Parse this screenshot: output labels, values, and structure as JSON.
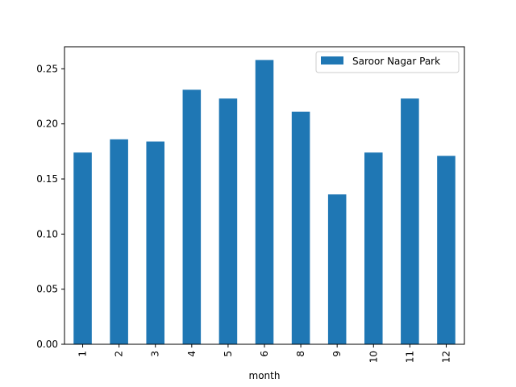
{
  "chart_data": {
    "type": "bar",
    "title": "",
    "xlabel": "month",
    "ylabel": "",
    "categories": [
      "1",
      "2",
      "3",
      "4",
      "5",
      "6",
      "8",
      "9",
      "10",
      "11",
      "12"
    ],
    "series": [
      {
        "name": "Saroor Nagar Park",
        "color": "#1f77b4",
        "values": [
          0.174,
          0.186,
          0.184,
          0.231,
          0.223,
          0.258,
          0.211,
          0.136,
          0.174,
          0.223,
          0.171
        ]
      }
    ],
    "ylim": [
      0,
      0.27
    ],
    "yticks": [
      "0.00",
      "0.05",
      "0.10",
      "0.15",
      "0.20",
      "0.25"
    ],
    "ytick_values": [
      0,
      0.05,
      0.1,
      0.15,
      0.2,
      0.25
    ],
    "grid": false,
    "legend_position": "top-right",
    "x_tick_rotation": "vertical"
  }
}
